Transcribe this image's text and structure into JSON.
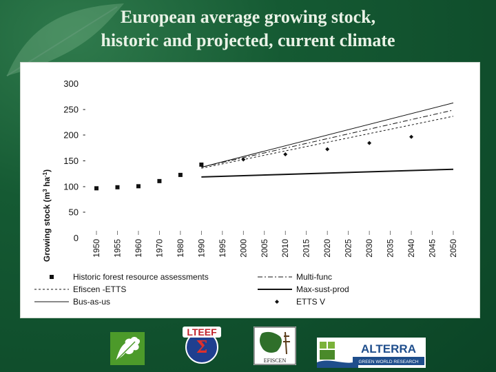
{
  "title": {
    "line1": "European average growing stock,",
    "line2": "historic and projected, current climate"
  },
  "chart_data": {
    "type": "line",
    "ylabel": "Growing stock (m3 ha-1)",
    "ylim": [
      0,
      300
    ],
    "yticks": [
      "0",
      "50",
      "100",
      "150",
      "200",
      "250",
      "300"
    ],
    "x_categories": [
      "1950",
      "1955",
      "1960",
      "1970",
      "1980",
      "1990",
      "1995",
      "2000",
      "2005",
      "2010",
      "2015",
      "2020",
      "2025",
      "2030",
      "2035",
      "2040",
      "2045",
      "2050"
    ],
    "series": [
      {
        "name": "Historic forest resource assessments",
        "style": "square-markers",
        "points": [
          [
            "1950",
            96
          ],
          [
            "1955",
            98
          ],
          [
            "1960",
            100
          ],
          [
            "1970",
            110
          ],
          [
            "1980",
            122
          ],
          [
            "1990",
            142
          ]
        ]
      },
      {
        "name": "Multi-func",
        "style": "dash-dot",
        "points": [
          [
            "1990",
            137
          ],
          [
            "2050",
            248
          ]
        ]
      },
      {
        "name": "Efiscen -ETTS",
        "style": "dotted",
        "points": [
          [
            "1990",
            135
          ],
          [
            "2050",
            236
          ]
        ]
      },
      {
        "name": "Max-sust-prod",
        "style": "solid-thick",
        "points": [
          [
            "1990",
            118
          ],
          [
            "2050",
            133
          ]
        ]
      },
      {
        "name": "Bus-as-us",
        "style": "solid-thin",
        "points": [
          [
            "1990",
            137
          ],
          [
            "2050",
            262
          ]
        ]
      },
      {
        "name": "ETTS V",
        "style": "diamond-markers",
        "points": [
          [
            "2000",
            152
          ],
          [
            "2010",
            162
          ],
          [
            "2020",
            172
          ],
          [
            "2030",
            184
          ],
          [
            "2040",
            196
          ]
        ]
      }
    ],
    "legend": {
      "placement": "bottom",
      "entries": [
        "Historic forest resource assessments",
        "Multi-func",
        "Efiscen -ETTS",
        "Max-sust-prod",
        "Bus-as-us",
        "ETTS V"
      ]
    },
    "grid": false
  },
  "logos": {
    "logo1": "oak-leaf-icon",
    "logo2": "LTEEF",
    "logo3": "EFISCEN",
    "logo4": "ALTERRA",
    "logo4_sub": "GREEN WORLD RESEARCH"
  },
  "colors": {
    "background": "#155a33",
    "title": "#e9f2e6",
    "oak_logo": "#4c9a2a",
    "alterra_blue": "#1f4e8c",
    "lteef_red": "#c0202a"
  }
}
